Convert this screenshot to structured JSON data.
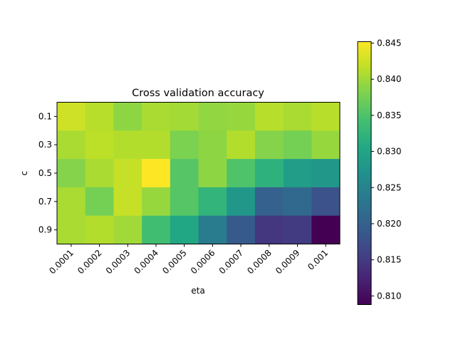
{
  "chart_data": {
    "type": "heatmap",
    "title": "Cross validation accuracy",
    "xlabel": "eta",
    "ylabel": "c",
    "x_categories": [
      "0.0001",
      "0.0002",
      "0.0003",
      "0.0004",
      "0.0005",
      "0.0006",
      "0.0007",
      "0.0008",
      "0.0009",
      "0.001"
    ],
    "y_categories": [
      "0.1",
      "0.3",
      "0.5",
      "0.7",
      "0.9"
    ],
    "values": [
      [
        0.8425,
        0.8412,
        0.839,
        0.8405,
        0.8402,
        0.8392,
        0.8395,
        0.8412,
        0.8405,
        0.8412
      ],
      [
        0.8405,
        0.8415,
        0.841,
        0.841,
        0.838,
        0.839,
        0.841,
        0.8385,
        0.8375,
        0.8395
      ],
      [
        0.8385,
        0.8405,
        0.842,
        0.8452,
        0.8355,
        0.839,
        0.835,
        0.832,
        0.829,
        0.828
      ],
      [
        0.8405,
        0.8375,
        0.842,
        0.8395,
        0.8355,
        0.8325,
        0.828,
        0.82,
        0.821,
        0.818
      ],
      [
        0.8405,
        0.841,
        0.84,
        0.834,
        0.8305,
        0.824,
        0.819,
        0.8145,
        0.815,
        0.8088
      ]
    ],
    "zlim": [
      0.8088,
      0.8452
    ],
    "colormap": "viridis",
    "colorbar_ticks": [
      "0.810",
      "0.815",
      "0.820",
      "0.825",
      "0.830",
      "0.835",
      "0.840",
      "0.845"
    ],
    "colorbar_tick_values": [
      0.81,
      0.815,
      0.82,
      0.825,
      0.83,
      0.835,
      0.84,
      0.845
    ]
  }
}
